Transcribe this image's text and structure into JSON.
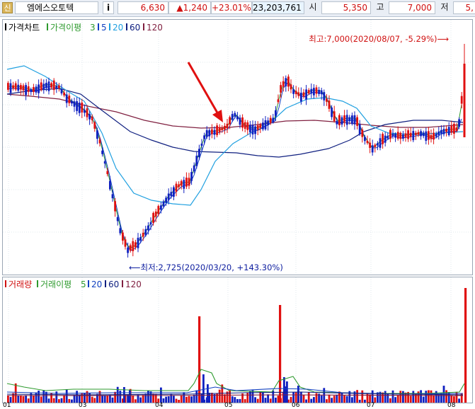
{
  "header": {
    "flag_label": "신",
    "stock_name": "엠에스오토텍",
    "info_label": "i",
    "price": "6,630",
    "change": "▲1,240",
    "change_pct": "+23.01%",
    "volume": "23,203,761",
    "open_label": "시",
    "open_value": "5,350",
    "high_label": "고",
    "high_value": "7,000",
    "low_label": "저",
    "low_value_partial": "5,"
  },
  "price_panel": {
    "legend": [
      {
        "text": "가격차트",
        "color": "#000000"
      },
      {
        "text": "가격이평",
        "color": "#2e9a2e"
      },
      {
        "text": "3",
        "color": "#2e9a2e"
      },
      {
        "text": "5",
        "color": "#1040c0"
      },
      {
        "text": "20",
        "color": "#20a0e0"
      },
      {
        "text": "60",
        "color": "#102080"
      },
      {
        "text": "120",
        "color": "#802040"
      }
    ],
    "high_annotation": "최고:7,000(2020/08/07, -5.29%)⟶",
    "low_annotation": "⟵최저:2,725(2020/03/20, +143.30%)"
  },
  "volume_panel": {
    "legend": [
      {
        "text": "거래량",
        "color": "#d01010"
      },
      {
        "text": "거래이평",
        "color": "#2e9a2e"
      },
      {
        "text": "5",
        "color": "#2e9a2e"
      },
      {
        "text": "20",
        "color": "#1040c0"
      },
      {
        "text": "60",
        "color": "#102080"
      },
      {
        "text": "120",
        "color": "#802040"
      }
    ]
  },
  "x_axis": [
    "01",
    "03",
    "04",
    "05",
    "06",
    "07",
    "08"
  ],
  "colors": {
    "up": "#e01010",
    "down": "#1020c0",
    "arrow": "#e01010"
  },
  "chart_data": {
    "type": "candlestick",
    "title": "엠에스오토텍",
    "series": [
      {
        "name": "가격차트",
        "approx_path": [
          [
            "01",
            5000
          ],
          [
            "02",
            4800
          ],
          [
            "02-end",
            4300
          ],
          [
            "03",
            3700
          ],
          [
            "03-20",
            2725
          ],
          [
            "04",
            3500
          ],
          [
            "04-mid",
            4200
          ],
          [
            "05",
            4550
          ],
          [
            "05-end",
            4550
          ],
          [
            "06",
            5500
          ],
          [
            "06-mid",
            4900
          ],
          [
            "07",
            4400
          ],
          [
            "07-mid",
            4500
          ],
          [
            "08",
            4600
          ],
          [
            "08-07",
            7000
          ]
        ]
      }
    ],
    "high": {
      "value": 7000,
      "date": "2020/08/07"
    },
    "low": {
      "value": 2725,
      "date": "2020/03/20"
    }
  }
}
